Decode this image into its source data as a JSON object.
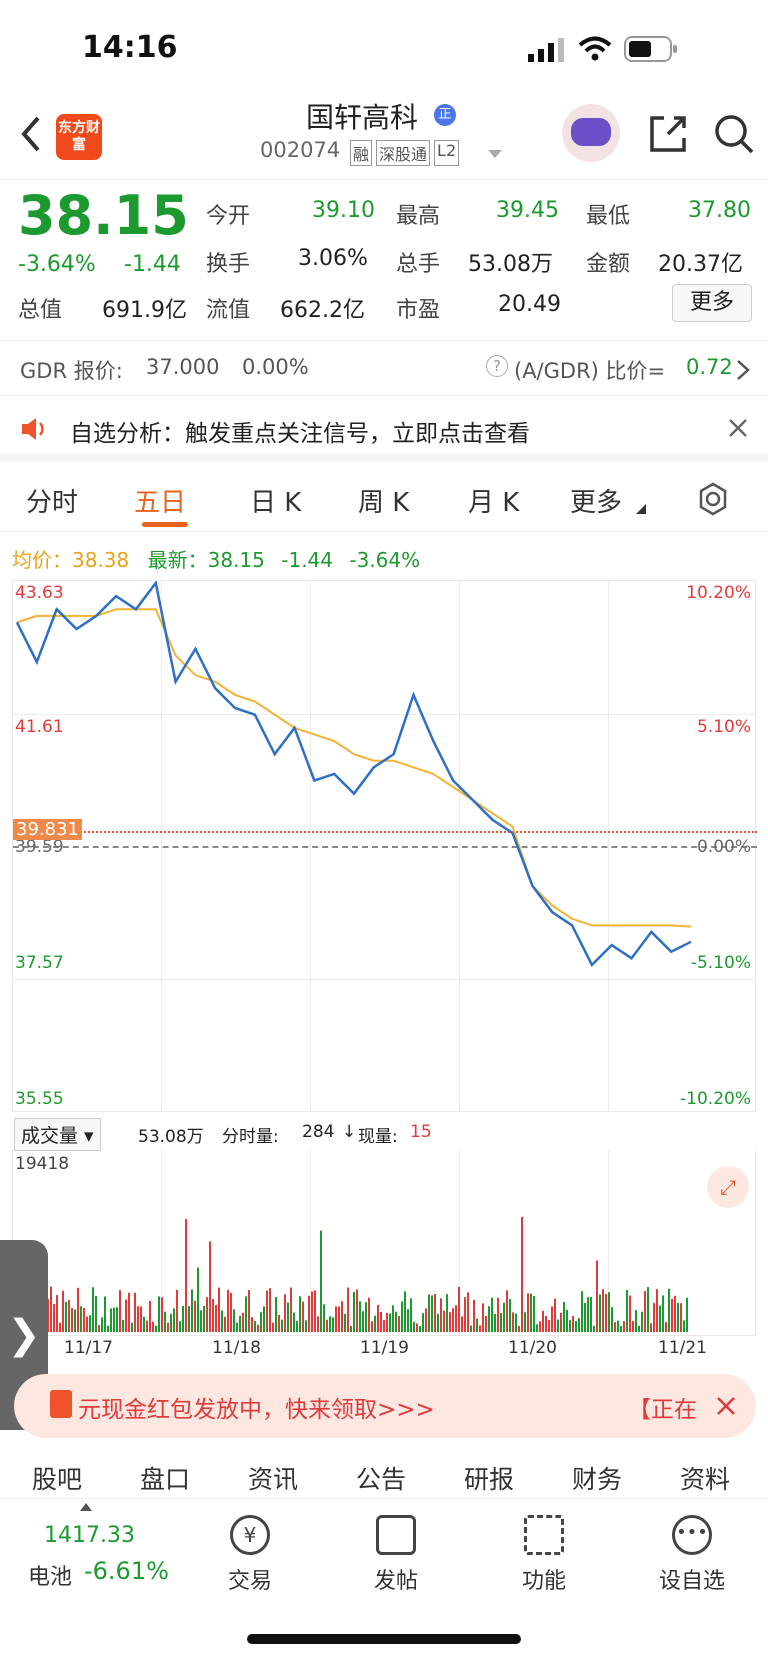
{
  "status": {
    "time": "14:16"
  },
  "header": {
    "logo_text": "东方财富",
    "stock_name": "国轩高科",
    "stock_code": "002074",
    "tags": [
      "融",
      "深股通",
      "L2"
    ]
  },
  "quote": {
    "price": "38.15",
    "change_pct": "-3.64%",
    "change": "-1.44",
    "rows": [
      {
        "l1": "今开",
        "v1": "39.10",
        "l2": "最高",
        "v2": "39.45",
        "l3": "最低",
        "v3": "37.80"
      },
      {
        "l1": "换手",
        "v1": "3.06%",
        "l2": "总手",
        "v2": "53.08万",
        "l3": "金额",
        "v3": "20.37亿"
      },
      {
        "l1": "总值",
        "v1": "691.9亿",
        "l2": "流值",
        "v2": "662.2亿",
        "l3": "市盈",
        "v3": "20.49"
      }
    ],
    "more_button": "更多"
  },
  "gdr": {
    "label": "GDR 报价:",
    "price": "37.000",
    "pct": "0.00%",
    "ratio_label": "(A/GDR) 比价=",
    "ratio": "0.72"
  },
  "notice": {
    "text": "自选分析：触发重点关注信号，立即点击查看"
  },
  "tabs": [
    "分时",
    "五日",
    "日 K",
    "周 K",
    "月 K",
    "更多"
  ],
  "chart_header": {
    "avg_label": "均价：",
    "avg": "38.38",
    "latest_label": "最新：",
    "latest": "38.15",
    "change": "-1.44",
    "pct": "-3.64%"
  },
  "chart_data": {
    "type": "line",
    "y_left": [
      "43.63",
      "41.61",
      "39.59",
      "37.57",
      "35.55"
    ],
    "y_right": [
      "10.20%",
      "5.10%",
      "0.00%",
      "-5.10%",
      "-10.20%"
    ],
    "prev_close": 39.59,
    "marker_price": "39.831",
    "x": [
      "11/17",
      "11/18",
      "11/19",
      "11/20",
      "11/21"
    ],
    "price": [
      43.0,
      42.4,
      43.2,
      42.9,
      43.1,
      43.4,
      43.2,
      43.6,
      42.1,
      42.6,
      42.0,
      41.7,
      41.6,
      41.0,
      41.4,
      40.6,
      40.7,
      40.4,
      40.8,
      41.0,
      41.9,
      41.2,
      40.6,
      40.3,
      40.0,
      39.8,
      39.0,
      38.6,
      38.4,
      37.8,
      38.1,
      37.9,
      38.3,
      38.0,
      38.15
    ],
    "avg": [
      43.0,
      43.1,
      43.1,
      43.1,
      43.1,
      43.2,
      43.2,
      43.2,
      42.5,
      42.2,
      42.1,
      41.9,
      41.8,
      41.6,
      41.4,
      41.3,
      41.2,
      41.0,
      40.9,
      40.9,
      40.8,
      40.7,
      40.5,
      40.3,
      40.1,
      39.9,
      39.0,
      38.7,
      38.5,
      38.4,
      38.4,
      38.4,
      38.4,
      38.4,
      38.38
    ]
  },
  "volume": {
    "selector": "成交量",
    "total": "53.08万",
    "tick_label": "分时量:",
    "tick": "284",
    "now_label": "现量:",
    "now": "15",
    "max": "19418"
  },
  "banner": {
    "text": "元现金红包发放中，快来领取>>>",
    "right": "【正在"
  },
  "subtabs": [
    "股吧",
    "盘口",
    "资讯",
    "公告",
    "研报",
    "财务",
    "资料"
  ],
  "bottom": {
    "index_value": "1417.33",
    "index_name": "电池",
    "index_pct": "-6.61%",
    "items": [
      "交易",
      "发帖",
      "功能",
      "设自选"
    ]
  }
}
